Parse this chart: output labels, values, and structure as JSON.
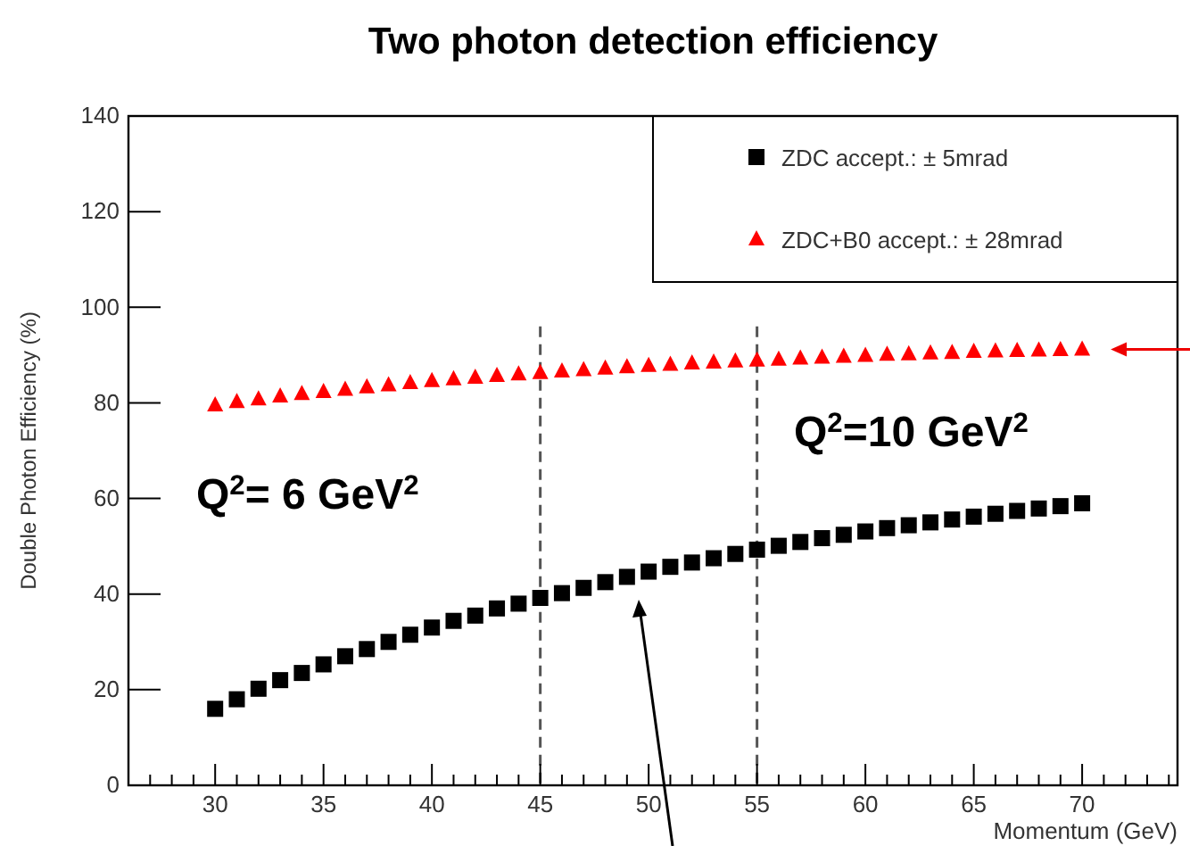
{
  "chart_data": {
    "type": "scatter",
    "title": "Two photon detection efficiency",
    "xlabel": "Momentum (GeV)",
    "ylabel": "Double Photon Efficiency (%)",
    "x": [
      30,
      31,
      32,
      33,
      34,
      35,
      36,
      37,
      38,
      39,
      40,
      41,
      42,
      43,
      44,
      45,
      46,
      47,
      48,
      49,
      50,
      51,
      52,
      53,
      54,
      55,
      56,
      57,
      58,
      59,
      60,
      61,
      62,
      63,
      64,
      65,
      66,
      67,
      68,
      69,
      70
    ],
    "series": [
      {
        "name": "ZDC accept.: ± 5mrad",
        "color": "#000000",
        "marker": "square",
        "values": [
          16,
          18,
          20.2,
          22,
          23.5,
          25.3,
          27,
          28.5,
          30,
          31.5,
          33,
          34.4,
          35.5,
          37,
          38,
          39.2,
          40.2,
          41.3,
          42.5,
          43.6,
          44.7,
          45.7,
          46.6,
          47.5,
          48.4,
          49.3,
          50.1,
          50.9,
          51.7,
          52.4,
          53.1,
          53.8,
          54.4,
          55,
          55.6,
          56.2,
          56.8,
          57.4,
          57.9,
          58.4,
          59
        ]
      },
      {
        "name": "ZDC+B0 accept.: ± 28mrad",
        "color": "#ff0000",
        "marker": "triangle",
        "values": [
          79.5,
          80.2,
          80.8,
          81.4,
          81.9,
          82.3,
          82.8,
          83.3,
          83.7,
          84.2,
          84.6,
          85,
          85.3,
          85.7,
          86,
          86.3,
          86.6,
          86.9,
          87.2,
          87.5,
          87.8,
          88,
          88.3,
          88.5,
          88.7,
          88.9,
          89.1,
          89.3,
          89.5,
          89.7,
          89.9,
          90.1,
          90.2,
          90.4,
          90.5,
          90.7,
          90.8,
          90.9,
          91,
          91.1,
          91.2
        ]
      }
    ],
    "xlim": [
      26,
      74.4
    ],
    "xticks": [
      {
        "value": 27,
        "label": null
      },
      {
        "value": 28,
        "label": null
      },
      {
        "value": 29,
        "label": null
      },
      30,
      {
        "value": 31,
        "label": null
      },
      {
        "value": 32,
        "label": null
      },
      {
        "value": 33,
        "label": null
      },
      {
        "value": 34,
        "label": null
      },
      35,
      {
        "value": 36,
        "label": null
      },
      {
        "value": 37,
        "label": null
      },
      {
        "value": 38,
        "label": null
      },
      {
        "value": 39,
        "label": null
      },
      40,
      {
        "value": 41,
        "label": null
      },
      {
        "value": 42,
        "label": null
      },
      {
        "value": 43,
        "label": null
      },
      {
        "value": 44,
        "label": null
      },
      45,
      {
        "value": 46,
        "label": null
      },
      {
        "value": 47,
        "label": null
      },
      {
        "value": 48,
        "label": null
      },
      {
        "value": 49,
        "label": null
      },
      50,
      {
        "value": 51,
        "label": null
      },
      {
        "value": 52,
        "label": null
      },
      {
        "value": 53,
        "label": null
      },
      {
        "value": 54,
        "label": null
      },
      55,
      {
        "value": 56,
        "label": null
      },
      {
        "value": 57,
        "label": null
      },
      {
        "value": 58,
        "label": null
      },
      {
        "value": 59,
        "label": null
      },
      60,
      {
        "value": 61,
        "label": null
      },
      {
        "value": 62,
        "label": null
      },
      {
        "value": 63,
        "label": null
      },
      {
        "value": 64,
        "label": null
      },
      65,
      {
        "value": 66,
        "label": null
      },
      {
        "value": 67,
        "label": null
      },
      {
        "value": 68,
        "label": null
      },
      {
        "value": 69,
        "label": null
      },
      70,
      {
        "value": 71,
        "label": null
      },
      {
        "value": 72,
        "label": null
      },
      {
        "value": 73,
        "label": null
      },
      {
        "value": 74,
        "label": null
      }
    ],
    "ylim": [
      0,
      140
    ],
    "yticks": [
      0,
      20,
      40,
      60,
      80,
      100,
      120,
      140
    ],
    "ref_lines": [
      {
        "axis": "x",
        "value": 45,
        "line_style": "dashed",
        "color": "#555555"
      },
      {
        "axis": "x",
        "value": 55,
        "line_style": "dashed",
        "color": "#555555"
      }
    ],
    "annotations": [
      "Q$^{2}$= 6 GeV$^{2}$",
      "Q$^{2}$=10 GeV$^{2}$"
    ],
    "legend": "top right",
    "grid": false
  }
}
